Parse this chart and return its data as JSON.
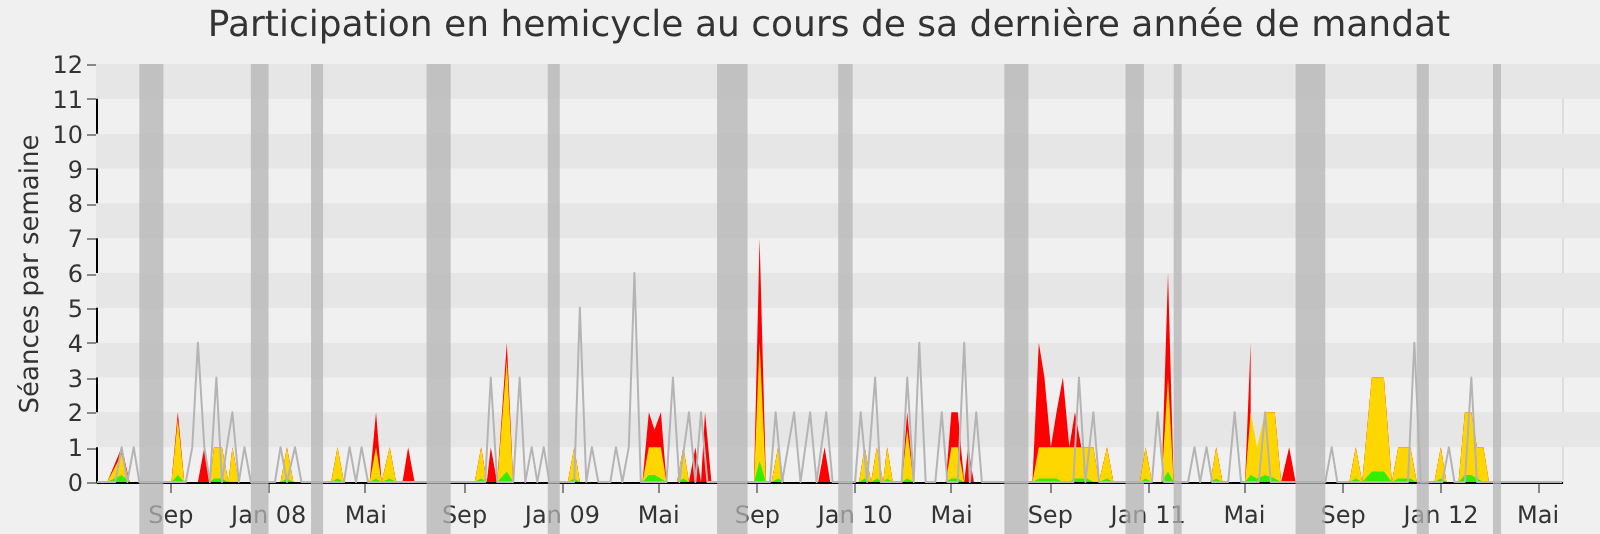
{
  "chart_data": {
    "type": "area",
    "title": "Participation en hemicycle au cours de sa dernière année de mandat",
    "ylabel": "Séances par semaine",
    "ylim": [
      0,
      12
    ],
    "yticks": [
      0,
      1,
      2,
      3,
      4,
      5,
      6,
      7,
      8,
      9,
      10,
      11,
      12
    ],
    "xlim": [
      "2007-06-01",
      "2012-06-01"
    ],
    "xticks": [
      {
        "value": "2007-09-01",
        "label": "Sep"
      },
      {
        "value": "2008-01-01",
        "label": "Jan 08"
      },
      {
        "value": "2008-05-01",
        "label": "Mai"
      },
      {
        "value": "2008-09-01",
        "label": "Sep"
      },
      {
        "value": "2009-01-01",
        "label": "Jan 09"
      },
      {
        "value": "2009-05-01",
        "label": "Mai"
      },
      {
        "value": "2009-09-01",
        "label": "Sep"
      },
      {
        "value": "2010-01-01",
        "label": "Jan 10"
      },
      {
        "value": "2010-05-01",
        "label": "Mai"
      },
      {
        "value": "2010-09-01",
        "label": "Sep"
      },
      {
        "value": "2011-01-01",
        "label": "Jan 11"
      },
      {
        "value": "2011-05-01",
        "label": "Mai"
      },
      {
        "value": "2011-09-01",
        "label": "Sep"
      },
      {
        "value": "2012-01-01",
        "label": "Jan 12"
      },
      {
        "value": "2012-05-01",
        "label": "Mai"
      }
    ],
    "grid": false,
    "bands": [
      {
        "axis": "y",
        "from": 1,
        "to": 2,
        "color": "#e6e6e6"
      },
      {
        "axis": "y",
        "from": 3,
        "to": 4,
        "color": "#e6e6e6"
      },
      {
        "axis": "y",
        "from": 5,
        "to": 6,
        "color": "#e6e6e6"
      },
      {
        "axis": "y",
        "from": 7,
        "to": 8,
        "color": "#e6e6e6"
      },
      {
        "axis": "y",
        "from": 9,
        "to": 10,
        "color": "#e6e6e6"
      },
      {
        "axis": "y",
        "from": 11,
        "to": 12,
        "color": "#e6e6e6"
      },
      {
        "axis": "x",
        "from": "2007-07-25",
        "to": "2007-08-24",
        "color": "#b4b4b4"
      },
      {
        "axis": "x",
        "from": "2007-12-11",
        "to": "2008-01-02",
        "color": "#b4b4b4"
      },
      {
        "axis": "x",
        "from": "2008-02-24",
        "to": "2008-03-10",
        "color": "#b4b4b4"
      },
      {
        "axis": "x",
        "from": "2008-07-17",
        "to": "2008-08-16",
        "color": "#b4b4b4"
      },
      {
        "axis": "x",
        "from": "2008-12-15",
        "to": "2008-12-30",
        "color": "#b4b4b4"
      },
      {
        "axis": "x",
        "from": "2009-07-14",
        "to": "2009-08-21",
        "color": "#b4b4b4"
      },
      {
        "axis": "x",
        "from": "2009-12-12",
        "to": "2009-12-30",
        "color": "#b4b4b4"
      },
      {
        "axis": "x",
        "from": "2010-07-07",
        "to": "2010-08-06",
        "color": "#b4b4b4"
      },
      {
        "axis": "x",
        "from": "2010-12-05",
        "to": "2010-12-28",
        "color": "#b4b4b4"
      },
      {
        "axis": "x",
        "from": "2011-02-03",
        "to": "2011-02-13",
        "color": "#b4b4b4"
      },
      {
        "axis": "x",
        "from": "2011-07-05",
        "to": "2011-08-11",
        "color": "#b4b4b4"
      },
      {
        "axis": "x",
        "from": "2011-12-03",
        "to": "2011-12-18",
        "color": "#b4b4b4"
      },
      {
        "axis": "x",
        "from": "2012-03-07",
        "to": "2012-03-17",
        "color": "#b4b4b4"
      }
    ],
    "x": [
      "2007-06-01",
      "2007-06-15",
      "2007-07-03",
      "2007-07-13",
      "2007-09-03",
      "2007-09-11",
      "2007-09-19",
      "2007-10-06",
      "2007-10-14",
      "2007-10-21",
      "2007-10-26",
      "2007-11-05",
      "2007-11-13",
      "2007-11-18",
      "2007-11-26",
      "2008-01-17",
      "2008-01-25",
      "2008-02-02",
      "2008-03-20",
      "2008-03-28",
      "2008-04-05",
      "2008-05-07",
      "2008-05-15",
      "2008-05-22",
      "2008-06-01",
      "2008-06-09",
      "2008-06-17",
      "2008-06-24",
      "2008-07-02",
      "2008-09-15",
      "2008-09-23",
      "2008-09-30",
      "2008-10-05",
      "2008-10-13",
      "2008-10-25",
      "2008-11-02",
      "2009-01-09",
      "2009-01-17",
      "2009-01-24",
      "2009-04-12",
      "2009-04-20",
      "2009-04-27",
      "2009-05-05",
      "2009-05-12",
      "2009-05-25",
      "2009-06-02",
      "2009-06-09",
      "2009-06-17",
      "2009-06-24",
      "2009-06-29",
      "2009-07-07",
      "2009-08-29",
      "2009-09-05",
      "2009-09-13",
      "2009-09-20",
      "2009-09-28",
      "2009-10-05",
      "2009-11-17",
      "2009-11-25",
      "2009-12-02",
      "2010-01-07",
      "2010-01-14",
      "2010-01-22",
      "2010-01-29",
      "2010-02-06",
      "2010-02-11",
      "2010-02-18",
      "2010-03-01",
      "2010-03-08",
      "2010-03-16",
      "2010-04-25",
      "2010-05-02",
      "2010-05-10",
      "2010-05-18",
      "2010-05-23",
      "2010-05-30",
      "2010-08-11",
      "2010-08-19",
      "2010-08-26",
      "2010-09-03",
      "2010-09-10",
      "2010-09-18",
      "2010-09-26",
      "2010-10-03",
      "2010-10-11",
      "2010-10-18",
      "2010-10-26",
      "2010-11-02",
      "2010-11-12",
      "2010-11-20",
      "2010-12-23",
      "2010-12-30",
      "2011-01-07",
      "2011-01-19",
      "2011-01-27",
      "2011-02-03",
      "2011-03-21",
      "2011-03-28",
      "2011-04-05",
      "2011-05-03",
      "2011-05-10",
      "2011-05-18",
      "2011-05-28",
      "2011-06-09",
      "2011-06-17",
      "2011-06-27",
      "2011-07-05",
      "2011-09-10",
      "2011-09-18",
      "2011-09-26",
      "2011-10-08",
      "2011-10-23",
      "2011-11-02",
      "2011-11-10",
      "2011-11-25",
      "2011-12-03",
      "2011-12-25",
      "2012-01-02",
      "2012-01-09",
      "2012-01-24",
      "2012-02-01",
      "2012-02-09",
      "2012-02-16",
      "2012-02-24",
      "2012-03-02",
      "2012-06-01"
    ],
    "series": [
      {
        "color": "#ff0000",
        "values": [
          0,
          0,
          1,
          0,
          0,
          2,
          0,
          0,
          1,
          0,
          1,
          1,
          0,
          1,
          0,
          0,
          1,
          0,
          0,
          1,
          0,
          0,
          2,
          0,
          1,
          0,
          0,
          1,
          0,
          0,
          1,
          0,
          1,
          0,
          4,
          0,
          0,
          1,
          0,
          0,
          2,
          1.5,
          2,
          0,
          0,
          1,
          0,
          1,
          0,
          2,
          0,
          0,
          7,
          0,
          0,
          1,
          0,
          0,
          1,
          0,
          0,
          1,
          0,
          1,
          0,
          1,
          0,
          0,
          2,
          0,
          0,
          2,
          2,
          0,
          1,
          0,
          0,
          4,
          3,
          1,
          2,
          3,
          1,
          2,
          1,
          1,
          1,
          0,
          1,
          0,
          0,
          1,
          0,
          0,
          6,
          0,
          0,
          1,
          0,
          0,
          4,
          null,
          2,
          2,
          0,
          1,
          0,
          0,
          1,
          0,
          3,
          3,
          0,
          1,
          1,
          0,
          0,
          1,
          0,
          0,
          2,
          2,
          1,
          1,
          0,
          0
        ]
      },
      {
        "color": "#ffd700",
        "values": [
          0,
          0,
          0.8,
          0,
          0,
          1.8,
          0,
          0,
          0,
          0,
          1,
          1,
          0,
          1,
          0,
          0,
          1,
          0,
          0,
          1,
          0,
          0,
          1,
          0,
          1,
          0,
          0,
          0,
          0,
          0,
          1,
          0,
          0,
          0,
          3.5,
          0,
          0,
          1,
          0,
          0,
          1,
          1,
          1,
          0,
          0,
          1,
          0,
          0,
          0,
          0,
          0,
          0,
          4,
          0,
          0,
          1,
          0,
          0,
          0,
          0,
          0,
          1,
          0,
          1,
          0,
          1,
          0,
          0,
          1.5,
          0,
          0,
          1,
          1,
          0,
          0,
          0,
          0,
          1,
          1,
          1,
          1,
          1,
          1,
          1,
          1,
          1,
          1,
          0,
          1,
          0,
          0,
          1,
          0,
          0,
          3,
          0,
          0,
          1,
          0,
          0,
          2,
          1,
          2,
          2,
          0,
          0,
          0,
          0,
          1,
          0,
          3,
          3,
          0,
          1,
          1,
          0,
          0,
          1,
          0,
          0,
          2,
          2,
          1,
          1,
          0,
          0
        ]
      },
      {
        "color": "#33ee00",
        "values": [
          0,
          0,
          0.2,
          0,
          0,
          0.2,
          0,
          0,
          0,
          0,
          0.1,
          0.1,
          0,
          0,
          0,
          0,
          0.1,
          0,
          0,
          0.1,
          0,
          0,
          0.1,
          0,
          0.1,
          0,
          0,
          0,
          0,
          0,
          0.1,
          0,
          0,
          0,
          0.3,
          0,
          0,
          0.1,
          0,
          0,
          0.2,
          0.2,
          0.1,
          0,
          0,
          0.1,
          0,
          0,
          0,
          0,
          0,
          0,
          0.6,
          0,
          0,
          0.1,
          0,
          0,
          0,
          0,
          0,
          0.1,
          0,
          0.1,
          0,
          0.1,
          0,
          0,
          0.1,
          0,
          0,
          0.1,
          0.1,
          0,
          0,
          0,
          0,
          0.1,
          0.1,
          0.1,
          0.1,
          0,
          0,
          0.1,
          0.1,
          0.1,
          0,
          0,
          0.1,
          0,
          0,
          0.1,
          0,
          0,
          0.3,
          0,
          0,
          0.1,
          0,
          0,
          0.2,
          0.1,
          0.2,
          0.1,
          0,
          0,
          0,
          0,
          0.1,
          0,
          0.3,
          0.3,
          0,
          0.1,
          0.1,
          0,
          0,
          0.1,
          0,
          0,
          0.2,
          0.2,
          0.1,
          0,
          0,
          0
        ]
      },
      {
        "type": "line",
        "color": "#b4b4b4",
        "x": [
          "2007-06-02",
          "2007-06-25",
          "2007-07-03",
          "2007-07-10",
          "2007-07-18",
          "2007-07-25",
          "2007-09-21",
          "2007-09-29",
          "2007-10-06",
          "2007-10-14",
          "2007-10-21",
          "2007-10-29",
          "2007-11-05",
          "2007-11-11",
          "2007-11-18",
          "2007-11-26",
          "2007-12-03",
          "2007-12-11",
          "2008-01-10",
          "2008-01-17",
          "2008-01-25",
          "2008-02-04",
          "2008-02-12",
          "2008-04-05",
          "2008-04-12",
          "2008-04-20",
          "2008-04-27",
          "2008-05-05",
          "2008-09-28",
          "2008-10-05",
          "2008-10-13",
          "2008-11-02",
          "2008-11-10",
          "2008-11-17",
          "2008-11-25",
          "2008-12-02",
          "2008-12-10",
          "2008-12-17",
          "2009-01-17",
          "2009-01-24",
          "2009-02-01",
          "2009-02-08",
          "2009-02-16",
          "2009-03-03",
          "2009-03-10",
          "2009-03-18",
          "2009-03-26",
          "2009-04-02",
          "2009-04-10",
          "2009-05-12",
          "2009-05-20",
          "2009-05-28",
          "2009-06-09",
          "2009-06-17",
          "2009-06-24",
          "2009-07-02",
          "2009-09-18",
          "2009-09-25",
          "2009-10-03",
          "2009-10-18",
          "2009-10-26",
          "2009-11-07",
          "2009-11-15",
          "2009-11-27",
          "2009-12-05",
          "2010-01-02",
          "2010-01-09",
          "2010-01-17",
          "2010-01-27",
          "2010-02-03",
          "2010-03-01",
          "2010-03-08",
          "2010-03-16",
          "2010-03-23",
          "2010-03-31",
          "2010-04-12",
          "2010-04-20",
          "2010-04-27",
          "2010-05-10",
          "2010-05-18",
          "2010-05-25",
          "2010-06-02",
          "2010-06-09",
          "2010-10-01",
          "2010-10-08",
          "2010-10-16",
          "2010-10-26",
          "2010-11-02",
          "2011-01-07",
          "2011-01-14",
          "2011-01-22",
          "2011-02-21",
          "2011-03-01",
          "2011-03-08",
          "2011-03-16",
          "2011-03-23",
          "2011-04-12",
          "2011-04-20",
          "2011-04-28",
          "2011-05-20",
          "2011-05-28",
          "2011-06-04",
          "2011-08-11",
          "2011-08-19",
          "2011-08-26",
          "2011-11-22",
          "2011-11-30",
          "2011-12-08",
          "2012-01-04",
          "2012-01-12",
          "2012-01-19",
          "2012-02-01",
          "2012-02-09",
          "2012-02-16",
          "2012-06-01"
        ],
        "values": [
          0,
          0,
          1,
          0,
          1,
          0,
          0,
          1,
          4,
          1,
          0,
          3,
          0,
          1,
          2,
          0,
          1,
          0,
          0,
          1,
          0,
          1,
          0,
          0,
          1,
          0,
          1,
          0,
          0,
          3,
          0,
          0,
          3,
          0,
          1,
          0,
          1,
          0,
          0,
          5,
          0,
          1,
          0,
          0,
          1,
          0,
          1,
          6,
          0,
          0,
          3,
          0,
          2,
          0,
          2,
          0,
          0,
          2,
          0,
          2,
          0,
          2,
          0,
          2,
          0,
          0,
          2,
          0,
          3,
          0,
          0,
          3,
          0,
          4,
          0,
          0,
          2,
          0,
          0,
          4,
          0,
          2,
          0,
          0,
          3,
          0,
          2,
          0,
          0,
          2,
          0,
          0,
          1,
          0,
          1,
          0,
          0,
          2,
          0,
          0,
          2,
          0,
          0,
          1,
          0,
          0,
          4,
          0,
          0,
          1,
          0,
          0,
          3,
          0,
          0
        ]
      }
    ]
  }
}
